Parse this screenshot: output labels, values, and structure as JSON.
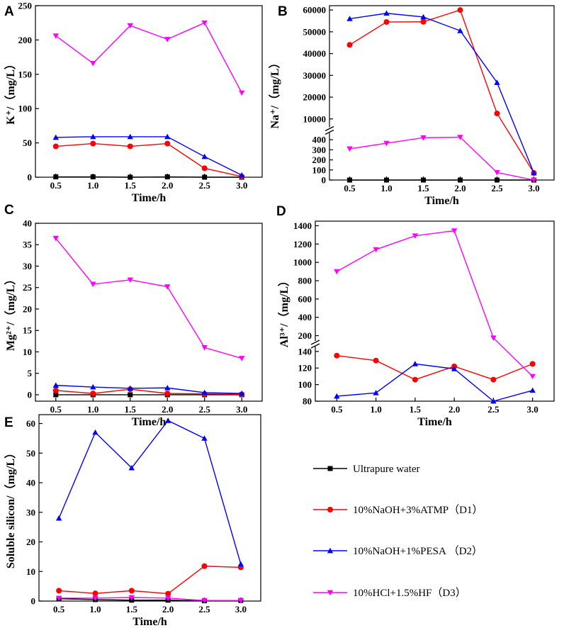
{
  "chart_data": [
    {
      "panel": "A",
      "type": "line",
      "x": [
        0.5,
        1.0,
        1.5,
        2.0,
        2.5,
        3.0
      ],
      "xticklabels": [
        "0.5",
        "1.0",
        "1.5",
        "2.0",
        "2.5",
        "3.0"
      ],
      "xlabel": "Time/h",
      "ylabel": "K⁺/（mg/L）",
      "ylim": [
        0,
        250
      ],
      "yticks": [
        0,
        50,
        100,
        150,
        200,
        250
      ],
      "series": [
        {
          "name": "Ultrapure water",
          "values": [
            0.5,
            0.5,
            0,
            0.5,
            0,
            0
          ]
        },
        {
          "name": "10%NaOH+3%ATMP (D1)",
          "values": [
            45,
            49,
            45,
            49,
            13,
            1
          ]
        },
        {
          "name": "10%NaOH+1%PESA (D2)",
          "values": [
            58,
            59,
            59,
            59,
            30,
            3
          ]
        },
        {
          "name": "10%HCl+1.5%HF (D3)",
          "values": [
            206,
            166,
            221,
            201,
            225,
            123
          ]
        }
      ]
    },
    {
      "panel": "B",
      "type": "line",
      "x": [
        0.5,
        1.0,
        1.5,
        2.0,
        2.5,
        3.0
      ],
      "xticklabels": [
        "0.5",
        "1.0",
        "1.5",
        "2.0",
        "2.5",
        "3.0"
      ],
      "xlabel": "Time/h",
      "ylabel": "Na⁺/（mg/L）",
      "broken_axis": {
        "lower": [
          0,
          450
        ],
        "upper": [
          7000,
          62000
        ]
      },
      "yticks_lower": [
        0,
        100,
        200,
        300,
        400
      ],
      "yticks_upper": [
        10000,
        20000,
        30000,
        40000,
        50000,
        60000
      ],
      "series": [
        {
          "name": "Ultrapure water",
          "values": [
            0,
            0,
            0,
            0,
            0,
            0
          ]
        },
        {
          "name": "10%NaOH+3%ATMP (D1)",
          "values": [
            44000,
            54500,
            54600,
            60000,
            12500,
            70
          ]
        },
        {
          "name": "10%NaOH+1%PESA (D2)",
          "values": [
            56000,
            58500,
            56800,
            50500,
            26700,
            70
          ]
        },
        {
          "name": "10%HCl+1.5%HF (D3)",
          "values": [
            310,
            365,
            420,
            425,
            75,
            0
          ]
        }
      ]
    },
    {
      "panel": "C",
      "type": "line",
      "x": [
        0.5,
        1.0,
        1.5,
        2.0,
        2.5,
        3.0
      ],
      "xticklabels": [
        "0.5",
        "1.0",
        "1.5",
        "2.0",
        "2.5",
        "3.0"
      ],
      "xlabel": "Time/h",
      "ylabel": "Mg²⁺/（mg/L）",
      "ylim": [
        -1.5,
        40
      ],
      "yticks": [
        0,
        5,
        10,
        15,
        20,
        25,
        30,
        35,
        40
      ],
      "series": [
        {
          "name": "Ultrapure water",
          "values": [
            0,
            0,
            0,
            0,
            0,
            0
          ]
        },
        {
          "name": "10%NaOH+3%ATMP (D1)",
          "values": [
            1.0,
            0.3,
            1.3,
            0.3,
            0.2,
            0.1
          ]
        },
        {
          "name": "10%NaOH+1%PESA (D2)",
          "values": [
            2.2,
            1.8,
            1.5,
            1.6,
            0.5,
            0.3
          ]
        },
        {
          "name": "10%HCl+1.5%HF (D3)",
          "values": [
            36.5,
            25.8,
            26.8,
            25.2,
            11.0,
            8.5
          ]
        }
      ]
    },
    {
      "panel": "D",
      "type": "line",
      "x": [
        0.5,
        1.0,
        1.5,
        2.0,
        2.5,
        3.0
      ],
      "xticklabels": [
        "0.5",
        "1.0",
        "1.5",
        "2.0",
        "2.5",
        "3.0"
      ],
      "xlabel": "Time/h",
      "ylabel": "Al³⁺/（mg/L）",
      "broken_axis": {
        "lower": [
          80,
          145
        ],
        "upper": [
          150,
          1450
        ]
      },
      "yticks_lower": [
        80,
        100,
        120,
        140
      ],
      "yticks_upper": [
        200,
        400,
        600,
        800,
        1000,
        1200,
        1400
      ],
      "series": [
        {
          "name": "10%NaOH+3%ATMP (D1)",
          "values": [
            135,
            129,
            106,
            122,
            106,
            125
          ]
        },
        {
          "name": "10%NaOH+1%PESA (D2)",
          "values": [
            86,
            90,
            125,
            119,
            80,
            93
          ]
        },
        {
          "name": "10%HCl+1.5%HF (D3)",
          "values": [
            900,
            1140,
            1290,
            1345,
            175,
            110
          ]
        }
      ]
    },
    {
      "panel": "E",
      "type": "line",
      "x": [
        0.5,
        1.0,
        1.5,
        2.0,
        2.5,
        3.0
      ],
      "xticklabels": [
        "0.5",
        "1.0",
        "1.5",
        "2.0",
        "2.5",
        "3.0"
      ],
      "xlabel": "Time/h",
      "ylabel": "Soluble silicon/（mg/L）",
      "ylim": [
        0,
        63
      ],
      "yticks": [
        0,
        10,
        20,
        30,
        40,
        50,
        60
      ],
      "series": [
        {
          "name": "Ultrapure water",
          "values": [
            0.8,
            0.5,
            0.3,
            0.3,
            0.1,
            0.2
          ]
        },
        {
          "name": "10%NaOH+3%ATMP (D1)",
          "values": [
            3.5,
            2.6,
            3.5,
            2.5,
            11.8,
            11.4
          ]
        },
        {
          "name": "10%NaOH+1%PESA (D2)",
          "values": [
            28,
            57,
            45,
            61,
            55,
            12.5
          ]
        },
        {
          "name": "10%HCl+1.5%HF (D3)",
          "values": [
            1.0,
            1.0,
            1.2,
            1.0,
            0.2,
            0.2
          ]
        }
      ]
    }
  ],
  "legend": {
    "items": [
      {
        "key": "water",
        "label": "Ultrapure water",
        "color": "#000000",
        "marker": "square"
      },
      {
        "key": "d1",
        "label": "10%NaOH+3%ATMP（D1）",
        "color": "#ff0000",
        "marker": "circle"
      },
      {
        "key": "d2",
        "label": "10%NaOH+1%PESA （D2）",
        "color": "#0000ff",
        "marker": "triangle-up"
      },
      {
        "key": "d3",
        "label": "10%HCl+1.5%HF（D3）",
        "color": "#ff00ff",
        "marker": "triangle-down"
      }
    ]
  }
}
